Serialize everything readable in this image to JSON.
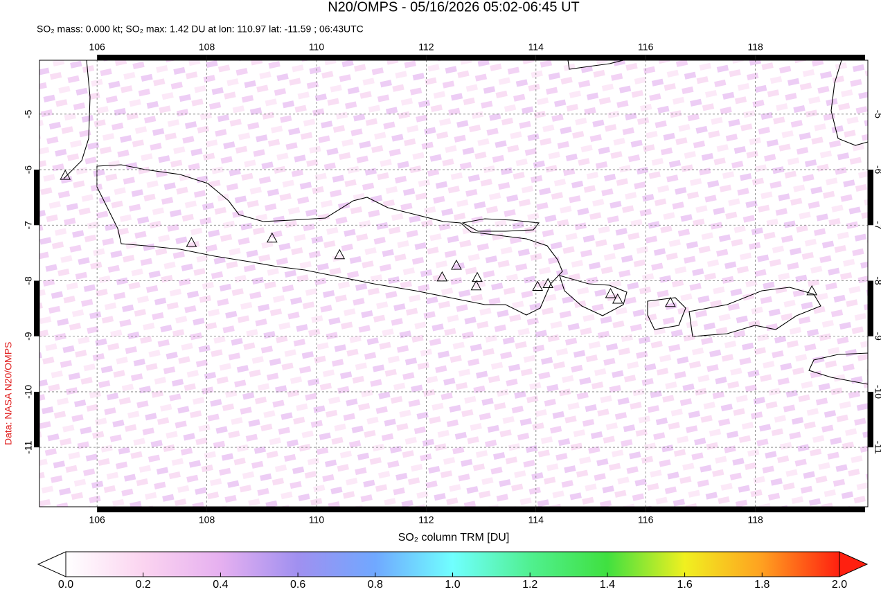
{
  "title": "N20/OMPS - 05/16/2026 05:02-06:45 UT",
  "subtitle": "SO₂ mass: 0.000 kt; SO₂ max: 1.42 DU at lon: 110.97 lat: -11.59 ; 06:43UTC",
  "credit": "Data: NASA N20/OMPS",
  "map": {
    "xlim": [
      104.95,
      120.05
    ],
    "ylim": [
      -12.07,
      -4.03
    ],
    "xticks": [
      106,
      108,
      110,
      112,
      114,
      116,
      118
    ],
    "yticks": [
      -5,
      -6,
      -7,
      -8,
      -9,
      -10,
      -11
    ],
    "grid": true,
    "volcanoes": {
      "lon": [
        105.42,
        107.72,
        109.19,
        110.42,
        112.29,
        112.55,
        112.93,
        112.91,
        114.03,
        114.22,
        115.36,
        115.49,
        116.45,
        119.03
      ],
      "lat": [
        -6.1,
        -7.31,
        -7.23,
        -7.53,
        -7.93,
        -7.72,
        -7.94,
        -8.09,
        -8.1,
        -8.05,
        -8.23,
        -8.33,
        -8.39,
        -8.18
      ]
    }
  },
  "colorbar": {
    "label": "SO₂ column TRM [DU]",
    "lim": [
      0,
      2
    ],
    "ticks": [
      {
        "value": 0,
        "label": "0.0"
      },
      {
        "value": 0.2,
        "label": "0.2"
      },
      {
        "value": 0.4,
        "label": "0.4"
      },
      {
        "value": 0.6,
        "label": "0.6"
      },
      {
        "value": 0.8,
        "label": "0.8"
      },
      {
        "value": 1,
        "label": "1.0"
      },
      {
        "value": 1.2,
        "label": "1.2"
      },
      {
        "value": 1.4,
        "label": "1.4"
      },
      {
        "value": 1.6,
        "label": "1.6"
      },
      {
        "value": 1.8,
        "label": "1.8"
      },
      {
        "value": 2,
        "label": "2.0"
      }
    ],
    "colors": [
      "#ffffff",
      "#fbd4f0",
      "#e6b0f0",
      "#a090f0",
      "#70a8ff",
      "#70ffff",
      "#50f090",
      "#40e040",
      "#f0f020",
      "#ffa020",
      "#ff2010"
    ]
  }
}
